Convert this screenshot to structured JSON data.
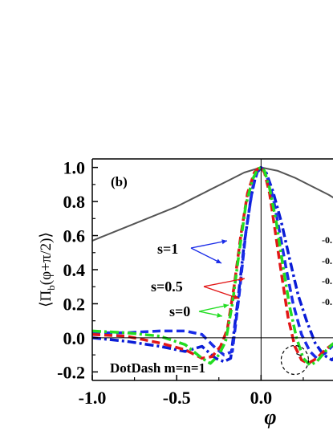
{
  "chart_data": {
    "type": "line",
    "panel_label": "(b)",
    "xlabel": "φ",
    "ylabel": "⟨Π_b(φ+π/2)⟩",
    "ylabel_parts": {
      "pre": "⟨Π",
      "sub": "b",
      "post": "(φ+π/2)⟩"
    },
    "xlim": [
      -1.0,
      0.45
    ],
    "ylim": [
      -0.25,
      1.05
    ],
    "x_ticks": [
      -1.0,
      -0.5,
      0.0
    ],
    "x_tick_labels": [
      "-1.0",
      "-0.5",
      "0.0"
    ],
    "y_ticks": [
      -0.2,
      0.0,
      0.2,
      0.4,
      0.6,
      0.8,
      1.0
    ],
    "y_tick_labels": [
      "-0.2",
      "0.0",
      "0.2",
      "0.4",
      "0.6",
      "0.8",
      "1.0"
    ],
    "note": "DotDash m=n=1",
    "annotations": [
      "s=1",
      "s=0.5",
      "s=0"
    ],
    "side_labels": [
      "-0.",
      "-0.",
      "-0.",
      "-0."
    ],
    "series": [
      {
        "color": "#555555",
        "style": "solid",
        "width": 2,
        "x": [
          -1.0,
          -0.9,
          -0.8,
          -0.7,
          -0.6,
          -0.5,
          -0.4,
          -0.3,
          -0.2,
          -0.1,
          0.0,
          0.1,
          0.2,
          0.3,
          0.4,
          0.45
        ],
        "y": [
          0.57,
          0.61,
          0.65,
          0.69,
          0.73,
          0.77,
          0.82,
          0.87,
          0.92,
          0.97,
          1.0,
          0.98,
          0.94,
          0.89,
          0.84,
          0.81
        ]
      },
      {
        "color": "#0a1cd6",
        "style": "dashdot",
        "width": 3.5,
        "x": [
          -1.0,
          -0.8,
          -0.6,
          -0.45,
          -0.35,
          -0.27,
          -0.22,
          -0.18,
          -0.14,
          -0.1,
          -0.06,
          -0.03,
          0.0,
          0.03,
          0.07,
          0.12,
          0.17,
          0.22,
          0.27,
          0.32,
          0.37,
          0.42,
          0.45
        ],
        "y": [
          0.0,
          -0.02,
          -0.05,
          -0.08,
          -0.05,
          -0.12,
          -0.14,
          -0.12,
          0.2,
          0.55,
          0.82,
          0.96,
          1.0,
          0.97,
          0.86,
          0.68,
          0.46,
          0.25,
          0.1,
          -0.03,
          -0.1,
          -0.13,
          -0.1
        ]
      },
      {
        "color": "#1a2ce8",
        "style": "dashed",
        "width": 3.5,
        "x": [
          -1.0,
          -0.8,
          -0.6,
          -0.45,
          -0.35,
          -0.28,
          -0.22,
          -0.17,
          -0.13,
          -0.09,
          -0.05,
          -0.02,
          0.0,
          0.03,
          0.07,
          0.11,
          0.15,
          0.19,
          0.24,
          0.29,
          0.33,
          0.38,
          0.42,
          0.45
        ],
        "y": [
          0.03,
          0.03,
          0.04,
          0.04,
          0.02,
          -0.05,
          -0.1,
          -0.08,
          0.25,
          0.62,
          0.88,
          0.98,
          1.0,
          0.96,
          0.83,
          0.62,
          0.4,
          0.2,
          0.02,
          -0.08,
          -0.12,
          -0.09,
          -0.05,
          -0.02
        ]
      },
      {
        "color": "#e21717",
        "style": "dashed",
        "width": 3.5,
        "x": [
          -1.0,
          -0.8,
          -0.6,
          -0.45,
          -0.35,
          -0.29,
          -0.24,
          -0.2,
          -0.16,
          -0.12,
          -0.08,
          -0.04,
          -0.01,
          0.0,
          0.02,
          0.05,
          0.08,
          0.12,
          0.16,
          0.2,
          0.24,
          0.28,
          0.33,
          0.38,
          0.42,
          0.45
        ],
        "y": [
          0.02,
          0.01,
          -0.03,
          -0.07,
          -0.12,
          -0.11,
          -0.05,
          0.05,
          0.3,
          0.6,
          0.85,
          0.97,
          1.0,
          1.0,
          0.97,
          0.85,
          0.65,
          0.38,
          0.12,
          -0.05,
          -0.13,
          -0.15,
          -0.12,
          -0.07,
          -0.04,
          -0.02
        ]
      },
      {
        "color": "#22dd22",
        "style": "dashdot",
        "width": 3.5,
        "x": [
          -1.0,
          -0.8,
          -0.6,
          -0.45,
          -0.35,
          -0.3,
          -0.25,
          -0.21,
          -0.17,
          -0.13,
          -0.09,
          -0.05,
          -0.02,
          0.0,
          0.02,
          0.05,
          0.09,
          0.13,
          0.17,
          0.21,
          0.25,
          0.29,
          0.33,
          0.38,
          0.42,
          0.45
        ],
        "y": [
          0.04,
          0.03,
          0.01,
          -0.04,
          -0.12,
          -0.15,
          -0.1,
          -0.02,
          0.2,
          0.5,
          0.78,
          0.93,
          0.99,
          1.0,
          0.98,
          0.88,
          0.68,
          0.42,
          0.18,
          0.0,
          -0.12,
          -0.16,
          -0.14,
          -0.08,
          -0.04,
          -0.02
        ]
      }
    ]
  }
}
